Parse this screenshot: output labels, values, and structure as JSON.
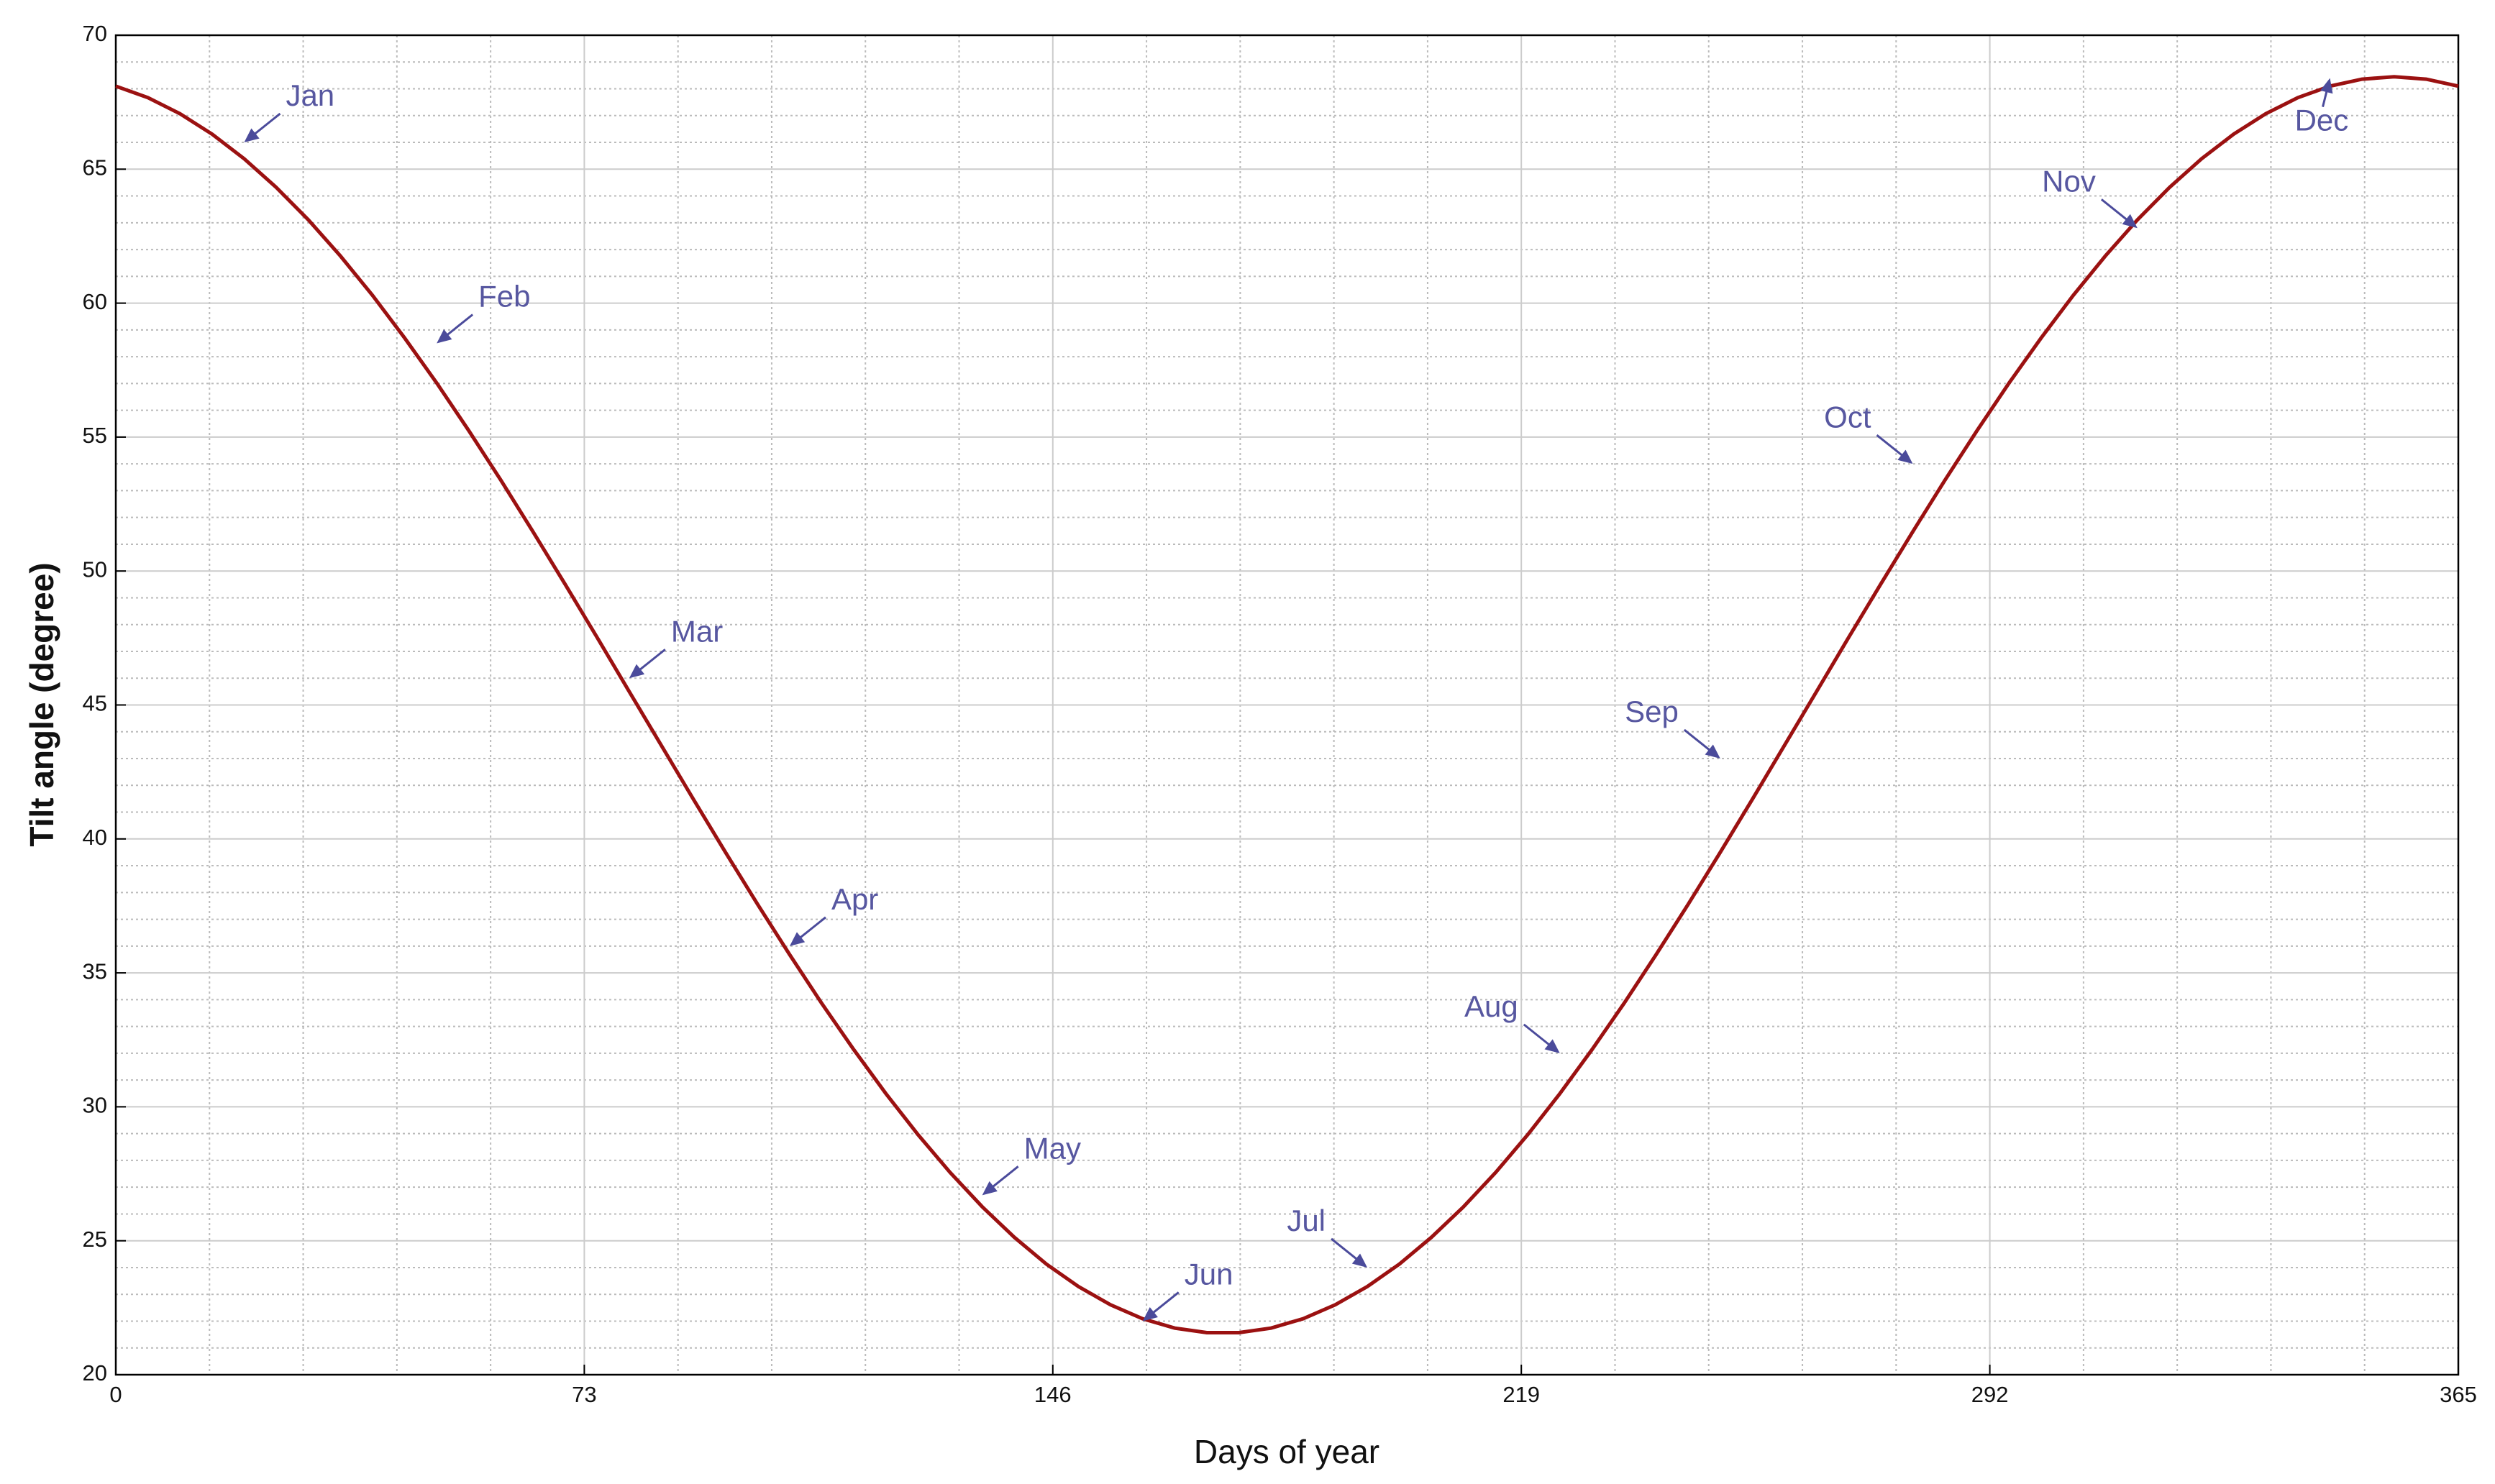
{
  "chart_data": {
    "type": "line",
    "xlabel": "Days of year",
    "ylabel": "Tilt angle (degree)",
    "x": [
      0,
      5,
      10,
      15,
      20,
      25,
      30,
      35,
      40,
      45,
      50,
      55,
      60,
      65,
      70,
      75,
      80,
      85,
      90,
      95,
      100,
      105,
      110,
      115,
      120,
      125,
      130,
      135,
      140,
      145,
      150,
      155,
      160,
      165,
      170,
      175,
      180,
      185,
      190,
      195,
      200,
      205,
      210,
      215,
      220,
      225,
      230,
      235,
      240,
      245,
      250,
      255,
      260,
      265,
      270,
      275,
      280,
      285,
      290,
      295,
      300,
      305,
      310,
      315,
      320,
      325,
      330,
      335,
      340,
      345,
      350,
      355,
      360,
      365
    ],
    "values": [
      68.1,
      67.67,
      67.07,
      66.31,
      65.39,
      64.32,
      63.11,
      61.76,
      60.29,
      58.7,
      57.02,
      55.24,
      53.39,
      51.47,
      49.51,
      47.52,
      45.5,
      43.49,
      41.48,
      39.5,
      37.56,
      35.68,
      33.86,
      32.13,
      30.49,
      28.96,
      27.55,
      26.27,
      25.13,
      24.13,
      23.29,
      22.61,
      22.09,
      21.74,
      21.57,
      21.57,
      21.74,
      22.09,
      22.61,
      23.29,
      24.13,
      25.13,
      26.27,
      27.55,
      28.96,
      30.49,
      32.13,
      33.86,
      35.68,
      37.56,
      39.5,
      41.48,
      43.49,
      45.5,
      47.52,
      49.51,
      51.47,
      53.39,
      55.24,
      57.02,
      58.7,
      60.29,
      61.76,
      63.11,
      64.32,
      65.39,
      66.31,
      67.07,
      67.67,
      68.1,
      68.36,
      68.45,
      68.36,
      68.1
    ],
    "color": "#9b1111",
    "annotations": [
      {
        "text": "Jan",
        "x": 20,
        "y": 66
      },
      {
        "text": "Feb",
        "x": 50,
        "y": 58.5
      },
      {
        "text": "Mar",
        "x": 80,
        "y": 46
      },
      {
        "text": "Apr",
        "x": 105,
        "y": 36
      },
      {
        "text": "May",
        "x": 135,
        "y": 26.7
      },
      {
        "text": "Jun",
        "x": 160,
        "y": 22
      },
      {
        "text": "Jul",
        "x": 195,
        "y": 24
      },
      {
        "text": "Aug",
        "x": 225,
        "y": 32
      },
      {
        "text": "Sep",
        "x": 250,
        "y": 43
      },
      {
        "text": "Oct",
        "x": 280,
        "y": 54
      },
      {
        "text": "Nov",
        "x": 315,
        "y": 62.8
      },
      {
        "text": "Dec",
        "x": 345,
        "y": 68.4
      }
    ],
    "xlim": [
      0,
      365
    ],
    "xticks": [
      0,
      73,
      146,
      219,
      292,
      365
    ],
    "ylim": [
      20,
      70
    ],
    "yticks": [
      20,
      25,
      30,
      35,
      40,
      45,
      50,
      55,
      60,
      65,
      70
    ],
    "grid": true
  }
}
